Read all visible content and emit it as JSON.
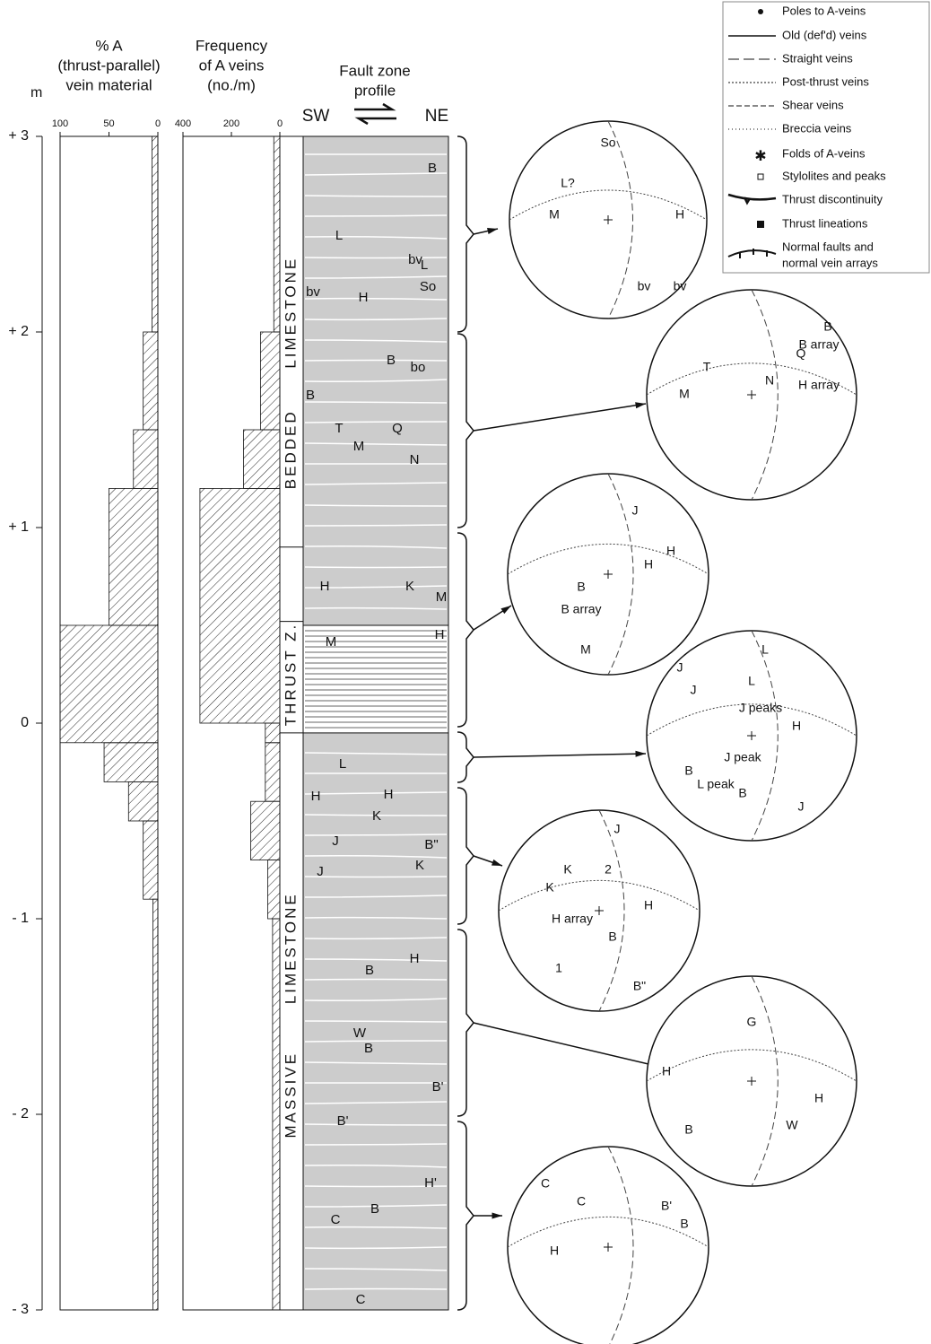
{
  "depth_axis": {
    "unit": "m",
    "ticks": [
      {
        "value": 3,
        "label": "+ 3"
      },
      {
        "value": 2,
        "label": "+ 2"
      },
      {
        "value": 1,
        "label": "+ 1"
      },
      0,
      {
        "value": -1,
        "label": "- 1"
      },
      {
        "value": -2,
        "label": "- 2"
      },
      {
        "value": -3,
        "label": "- 3"
      }
    ],
    "lim": [
      -3,
      3
    ]
  },
  "percent_panel": {
    "title": [
      "% A",
      "(thrust-parallel)",
      "vein material"
    ],
    "xlim": [
      100,
      0
    ],
    "xticks": [
      100,
      50,
      0
    ],
    "steps": [
      {
        "top": 3,
        "bottom": 2,
        "value": 6
      },
      {
        "top": 2,
        "bottom": 1.5,
        "value": 15
      },
      {
        "top": 1.5,
        "bottom": 1.2,
        "value": 25
      },
      {
        "top": 1.2,
        "bottom": 0.5,
        "value": 50
      },
      {
        "top": 0.5,
        "bottom": -0.1,
        "value": 100
      },
      {
        "top": -0.1,
        "bottom": -0.3,
        "value": 55
      },
      {
        "top": -0.3,
        "bottom": -0.5,
        "value": 30
      },
      {
        "top": -0.5,
        "bottom": -0.9,
        "value": 15
      },
      {
        "top": -0.9,
        "bottom": -3,
        "value": 5
      }
    ]
  },
  "frequency_panel": {
    "title": [
      "Frequency",
      "of A veins",
      "(no./m)"
    ],
    "xlim": [
      400,
      0
    ],
    "xticks": [
      400,
      200,
      0
    ],
    "steps": [
      {
        "top": 3,
        "bottom": 2,
        "value": 25
      },
      {
        "top": 2,
        "bottom": 1.5,
        "value": 80
      },
      {
        "top": 1.5,
        "bottom": 1.2,
        "value": 150
      },
      {
        "top": 1.2,
        "bottom": 0,
        "value": 330
      },
      {
        "top": 0,
        "bottom": -0.1,
        "value": 60
      },
      {
        "top": -0.1,
        "bottom": -0.4,
        "value": 60
      },
      {
        "top": -0.4,
        "bottom": -0.7,
        "value": 120
      },
      {
        "top": -0.7,
        "bottom": -1,
        "value": 50
      },
      {
        "top": -1,
        "bottom": -3,
        "value": 30
      }
    ]
  },
  "profile": {
    "title": [
      "Fault zone",
      "profile"
    ],
    "left": "SW",
    "right": "NE",
    "units": [
      "LIMESTONE",
      "BEDDED",
      "THRUST Z.",
      "LIMESTONE",
      "MASSIVE"
    ],
    "labels": [
      "B",
      "L",
      "bv",
      "So",
      "L",
      "bv",
      "H",
      "B",
      "bo",
      "B",
      "T",
      "Q",
      "M",
      "N",
      "H",
      "K",
      "M",
      "M",
      "H",
      "L",
      "H",
      "H",
      "K",
      "J",
      "B\"",
      "K",
      "J",
      "B",
      "H",
      "W",
      "B",
      "B'",
      "B'",
      "C",
      "H'",
      "B",
      "C"
    ]
  },
  "legend": [
    "Poles to A-veins",
    "Old (def'd) veins",
    "Straight veins",
    "Post-thrust veins",
    "Shear veins",
    "Breccia veins",
    "Folds of A-veins",
    "Stylolites and peaks",
    "Thrust discontinuity",
    "Thrust lineations",
    "Normal faults and",
    "normal vein arrays"
  ],
  "stereonets": [
    [
      "So",
      "L?",
      "M",
      "H",
      "bv",
      "bv"
    ],
    [
      "B",
      "Q",
      "T",
      "M",
      "N",
      "H array",
      "B array"
    ],
    [
      "J",
      "H",
      "H",
      "B",
      "B array",
      "M"
    ],
    [
      "L",
      "L",
      "J",
      "J",
      "J peaks",
      "H",
      "J peak",
      "B",
      "L peak",
      "B",
      "J"
    ],
    [
      "J",
      "K",
      "K",
      "2",
      "H",
      "H array",
      "B",
      "1",
      "B\""
    ],
    [
      "G",
      "H",
      "H",
      "B",
      "W"
    ],
    [
      "C",
      "C",
      "B'",
      "B",
      "H"
    ]
  ]
}
